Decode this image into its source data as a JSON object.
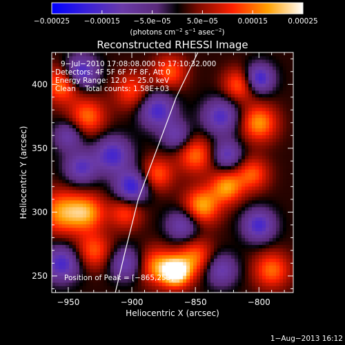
{
  "chart_data": {
    "type": "heatmap",
    "title": "Reconstructed RHESSI Image",
    "xlabel": "Heliocentric X (arcsec)",
    "ylabel": "Heliocentric Y (arcsec)",
    "xlim": [
      -963,
      -773
    ],
    "ylim": [
      237,
      425
    ],
    "x_ticks": [
      -950,
      -900,
      -850,
      -800
    ],
    "x_tick_labels": [
      "−950",
      "−900",
      "−850",
      "−800"
    ],
    "y_ticks": [
      250,
      300,
      350,
      400
    ],
    "y_tick_labels": [
      "250",
      "300",
      "350",
      "400"
    ],
    "colorbar": {
      "range": [
        -0.00025,
        0.00025
      ],
      "ticks": [
        -0.00025,
        -0.00015,
        -5e-05,
        5e-05,
        0.00015,
        0.00025
      ],
      "tick_labels": [
        "−0.00025",
        "−0.00015",
        "−5.0e−05",
        "5.0e−05",
        "0.00015",
        "0.00025"
      ],
      "unit_prefix": "(photons cm",
      "unit_exp1": "−2",
      "unit_mid": " s",
      "unit_exp2": "−1",
      "unit_mid2": " asec",
      "unit_exp3": "−2",
      "unit_suffix": ")"
    },
    "annotations": [
      "9−Jul−2010 17:08:08.000 to 17:10:32.000",
      "Detectors: 4F 5F 6F 7F 8F, Att 0",
      "Energy Range: 12.0 − 25.0 keV",
      "Clean    Total counts: 1.58E+03"
    ],
    "peak_label": "Position of Peak = [−865,253]",
    "peak": {
      "x": -865,
      "y": 253
    },
    "limb": [
      [
        -913,
        237
      ],
      [
        -905,
        270
      ],
      [
        -895,
        310
      ],
      [
        -880,
        350
      ],
      [
        -865,
        390
      ],
      [
        -848,
        425
      ]
    ],
    "sources": [
      {
        "x": -865,
        "y": 253,
        "v": 1.0,
        "s": 8
      },
      {
        "x": -880,
        "y": 258,
        "v": 0.6,
        "s": 10
      },
      {
        "x": -850,
        "y": 265,
        "v": 0.55,
        "s": 10
      },
      {
        "x": -955,
        "y": 300,
        "v": 0.65,
        "s": 12
      },
      {
        "x": -935,
        "y": 300,
        "v": 0.6,
        "s": 10
      },
      {
        "x": -930,
        "y": 270,
        "v": 0.5,
        "s": 10
      },
      {
        "x": -845,
        "y": 305,
        "v": 0.7,
        "s": 10
      },
      {
        "x": -825,
        "y": 320,
        "v": 0.65,
        "s": 9
      },
      {
        "x": -850,
        "y": 345,
        "v": 0.55,
        "s": 10
      },
      {
        "x": -800,
        "y": 370,
        "v": 0.65,
        "s": 10
      },
      {
        "x": -815,
        "y": 400,
        "v": 0.55,
        "s": 9
      },
      {
        "x": -805,
        "y": 330,
        "v": 0.5,
        "s": 9
      },
      {
        "x": -955,
        "y": 400,
        "v": 0.6,
        "s": 10
      },
      {
        "x": -935,
        "y": 375,
        "v": 0.55,
        "s": 10
      },
      {
        "x": -900,
        "y": 395,
        "v": 0.45,
        "s": 10
      },
      {
        "x": -880,
        "y": 330,
        "v": 0.5,
        "s": 9
      },
      {
        "x": -905,
        "y": 300,
        "v": 0.45,
        "s": 9
      },
      {
        "x": -790,
        "y": 255,
        "v": 0.55,
        "s": 10
      },
      {
        "x": -870,
        "y": 410,
        "v": 0.5,
        "s": 9
      },
      {
        "x": -915,
        "y": 345,
        "v": -0.7,
        "s": 10
      },
      {
        "x": -900,
        "y": 320,
        "v": -0.8,
        "s": 9
      },
      {
        "x": -940,
        "y": 410,
        "v": -0.75,
        "s": 9
      },
      {
        "x": -880,
        "y": 380,
        "v": -0.7,
        "s": 10
      },
      {
        "x": -830,
        "y": 375,
        "v": -0.65,
        "s": 10
      },
      {
        "x": -800,
        "y": 290,
        "v": -0.7,
        "s": 9
      },
      {
        "x": -800,
        "y": 405,
        "v": -0.8,
        "s": 8
      },
      {
        "x": -955,
        "y": 260,
        "v": -0.7,
        "s": 10
      },
      {
        "x": -860,
        "y": 290,
        "v": -0.55,
        "s": 9
      },
      {
        "x": -825,
        "y": 345,
        "v": -0.6,
        "s": 8
      },
      {
        "x": -905,
        "y": 260,
        "v": -0.55,
        "s": 9
      },
      {
        "x": -940,
        "y": 335,
        "v": -0.6,
        "s": 9
      },
      {
        "x": -830,
        "y": 255,
        "v": -0.55,
        "s": 9
      },
      {
        "x": -950,
        "y": 360,
        "v": -0.5,
        "s": 8
      },
      {
        "x": -865,
        "y": 360,
        "v": -0.5,
        "s": 8
      }
    ]
  },
  "footer": {
    "timestamp": "1−Aug−2013 16:12"
  }
}
